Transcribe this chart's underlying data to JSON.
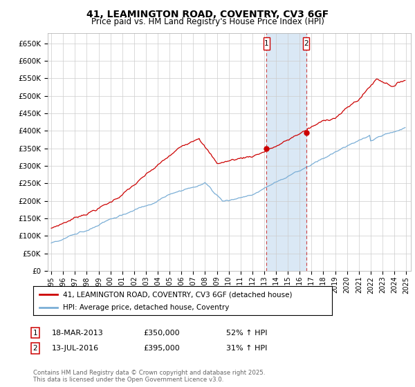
{
  "title": "41, LEAMINGTON ROAD, COVENTRY, CV3 6GF",
  "subtitle": "Price paid vs. HM Land Registry's House Price Index (HPI)",
  "ytick_labels": [
    "£0",
    "£50K",
    "£100K",
    "£150K",
    "£200K",
    "£250K",
    "£300K",
    "£350K",
    "£400K",
    "£450K",
    "£500K",
    "£550K",
    "£600K",
    "£650K"
  ],
  "yticks": [
    0,
    50000,
    100000,
    150000,
    200000,
    250000,
    300000,
    350000,
    400000,
    450000,
    500000,
    550000,
    600000,
    650000
  ],
  "ylim": [
    0,
    680000
  ],
  "xlim_start": 1995,
  "xlim_end": 2025,
  "line1_color": "#cc0000",
  "line2_color": "#7aaed6",
  "shaded_color": "#dae8f5",
  "grid_color": "#cccccc",
  "background_color": "#ffffff",
  "ann1_x": 2013.2,
  "ann1_y": 350000,
  "ann2_x": 2016.55,
  "ann2_y": 395000,
  "legend_line1": "41, LEAMINGTON ROAD, COVENTRY, CV3 6GF (detached house)",
  "legend_line2": "HPI: Average price, detached house, Coventry",
  "ann1_date": "18-MAR-2013",
  "ann1_amount": "£350,000",
  "ann1_pct": "52% ↑ HPI",
  "ann2_date": "13-JUL-2016",
  "ann2_amount": "£395,000",
  "ann2_pct": "31% ↑ HPI",
  "footnote": "Contains HM Land Registry data © Crown copyright and database right 2025.\nThis data is licensed under the Open Government Licence v3.0."
}
